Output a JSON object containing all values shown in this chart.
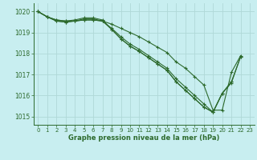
{
  "title": "Graphe pression niveau de la mer (hPa)",
  "background_color": "#c8eef0",
  "grid_color": "#b0d8d8",
  "line_color": "#2d6a2d",
  "xlim": [
    -0.5,
    23.5
  ],
  "ylim": [
    1014.6,
    1020.4
  ],
  "yticks": [
    1015,
    1016,
    1017,
    1018,
    1019,
    1020
  ],
  "xticks": [
    0,
    1,
    2,
    3,
    4,
    5,
    6,
    7,
    8,
    9,
    10,
    11,
    12,
    13,
    14,
    15,
    16,
    17,
    18,
    19,
    20,
    21,
    22,
    23
  ],
  "series": [
    {
      "x": [
        0,
        1,
        2,
        3,
        4,
        5,
        6,
        7,
        8,
        9,
        10,
        11,
        12,
        13,
        14,
        15,
        16,
        17,
        18,
        19,
        20,
        21,
        22
      ],
      "y": [
        1020.0,
        1019.75,
        1019.6,
        1019.55,
        1019.55,
        1019.6,
        1019.6,
        1019.55,
        1019.4,
        1019.2,
        1019.0,
        1018.8,
        1018.55,
        1018.3,
        1018.05,
        1017.6,
        1017.3,
        1016.9,
        1016.5,
        1015.3,
        1015.3,
        1017.1,
        1017.9
      ]
    },
    {
      "x": [
        0,
        1,
        2,
        3,
        4,
        5,
        6,
        7,
        8,
        9,
        10,
        11,
        12,
        13,
        14,
        15,
        16,
        17,
        18,
        19,
        20,
        21,
        22
      ],
      "y": [
        1020.0,
        1019.75,
        1019.55,
        1019.5,
        1019.55,
        1019.6,
        1019.6,
        1019.55,
        1019.2,
        1018.8,
        1018.45,
        1018.2,
        1017.9,
        1017.6,
        1017.3,
        1016.8,
        1016.4,
        1016.0,
        1015.6,
        1015.2,
        1016.1,
        1016.65,
        1017.85
      ]
    },
    {
      "x": [
        0,
        1,
        2,
        3,
        4,
        5,
        6,
        7,
        8,
        9,
        10,
        11,
        12,
        13,
        14,
        15,
        16,
        17,
        18,
        19,
        20,
        21
      ],
      "y": [
        1020.0,
        1019.75,
        1019.55,
        1019.5,
        1019.55,
        1019.65,
        1019.65,
        1019.55,
        1019.15,
        1018.7,
        1018.35,
        1018.1,
        1017.8,
        1017.5,
        1017.2,
        1016.65,
        1016.25,
        1015.85,
        1015.45,
        1015.2,
        1016.1,
        1016.65
      ]
    },
    {
      "x": [
        0,
        1,
        2,
        3,
        4,
        5,
        6,
        7,
        8,
        9,
        10,
        11,
        12,
        13,
        14,
        15,
        16,
        17,
        18,
        19,
        20,
        21,
        22
      ],
      "y": [
        1020.0,
        1019.75,
        1019.6,
        1019.55,
        1019.6,
        1019.7,
        1019.7,
        1019.6,
        1019.15,
        1018.7,
        1018.35,
        1018.1,
        1017.8,
        1017.5,
        1017.2,
        1016.65,
        1016.25,
        1015.85,
        1015.45,
        1015.2,
        1016.1,
        1016.6,
        1017.85
      ]
    }
  ]
}
